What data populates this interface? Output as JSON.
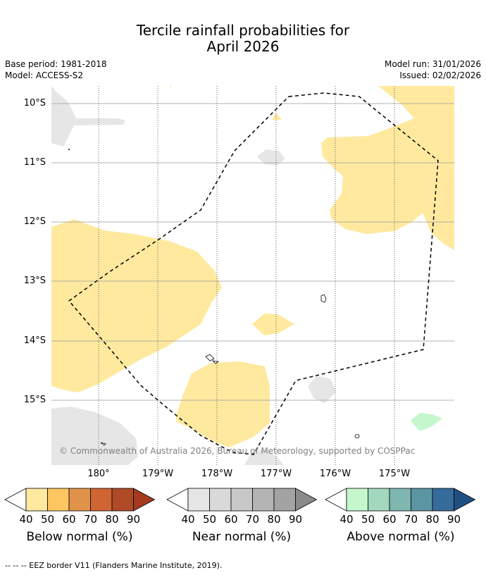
{
  "title_line1": "Tercile rainfall probabilities for",
  "title_line2": "April 2026",
  "base_period": "Base period: 1981-2018",
  "model": "Model: ACCESS-S2",
  "model_run": "Model run: 31/01/2026",
  "issued": "Issued: 02/02/2026",
  "latitudes": [
    "10°S",
    "11°S",
    "12°S",
    "13°S",
    "14°S",
    "15°S"
  ],
  "longitudes": [
    "180°",
    "179°W",
    "178°W",
    "177°W",
    "176°W",
    "175°W"
  ],
  "credit": "© Commonwealth of Australia 2026, Bureau of Meteorology, supported by COSPPac",
  "legends": [
    {
      "title": "Below normal (%)",
      "ticks": [
        "40",
        "50",
        "60",
        "70",
        "80",
        "90"
      ],
      "colors": [
        "#ffffff",
        "#fee99f",
        "#fec660",
        "#e0924a",
        "#cf6532",
        "#ae4a26",
        "#a43a1e"
      ]
    },
    {
      "title": "Near normal (%)",
      "ticks": [
        "40",
        "50",
        "60",
        "70",
        "80",
        "90"
      ],
      "colors": [
        "#ffffff",
        "#e6e6e6",
        "#d9d9d9",
        "#c8c8c8",
        "#b4b4b4",
        "#a3a3a3",
        "#8a8a8a"
      ]
    },
    {
      "title": "Above normal (%)",
      "ticks": [
        "40",
        "50",
        "60",
        "70",
        "80",
        "90"
      ],
      "colors": [
        "#ffffff",
        "#c4f7cc",
        "#a2d8bd",
        "#7eb6b0",
        "#5b95a3",
        "#366c9b",
        "#1f4f82"
      ]
    }
  ],
  "footer": "--  --  -- EEZ border V11 (Flanders Marine Institute, 2019).",
  "colors": {
    "below40": "#fee99f",
    "near40": "#e6e6e6",
    "above40": "#c4f7cc",
    "grid": "#9a9a9a"
  }
}
